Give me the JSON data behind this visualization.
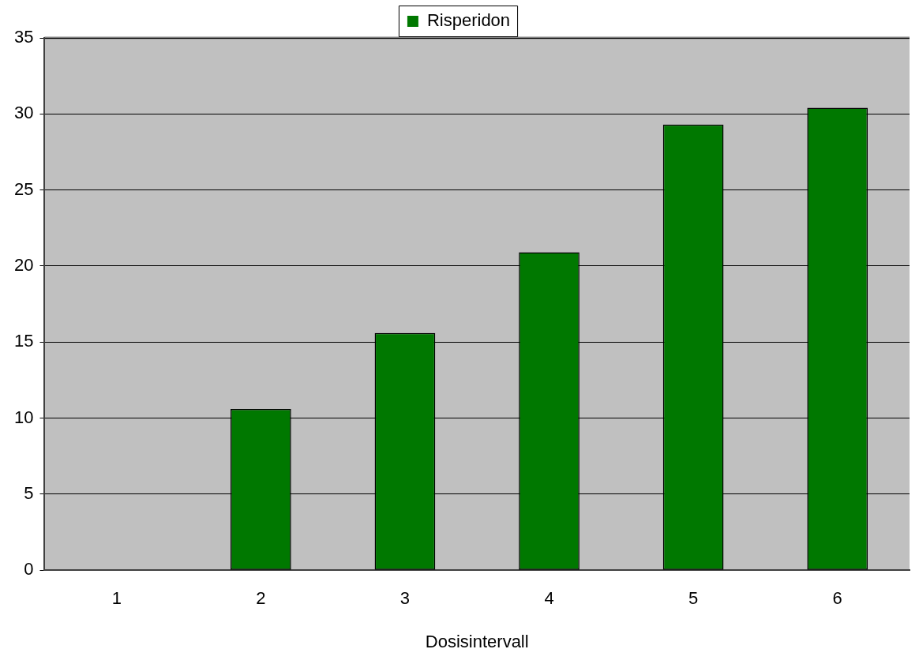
{
  "chart_data": {
    "type": "bar",
    "xlabel": "Dosisintervall",
    "categories": [
      "1",
      "2",
      "3",
      "4",
      "5",
      "6"
    ],
    "series": [
      {
        "name": "Risperidon",
        "color": "#007800",
        "values": [
          0,
          10.6,
          15.6,
          20.9,
          29.3,
          30.4
        ]
      }
    ],
    "ylim": [
      0,
      35
    ],
    "yticks": [
      0,
      5,
      10,
      15,
      20,
      25,
      30,
      35
    ],
    "grid": "y",
    "legend": "top"
  }
}
